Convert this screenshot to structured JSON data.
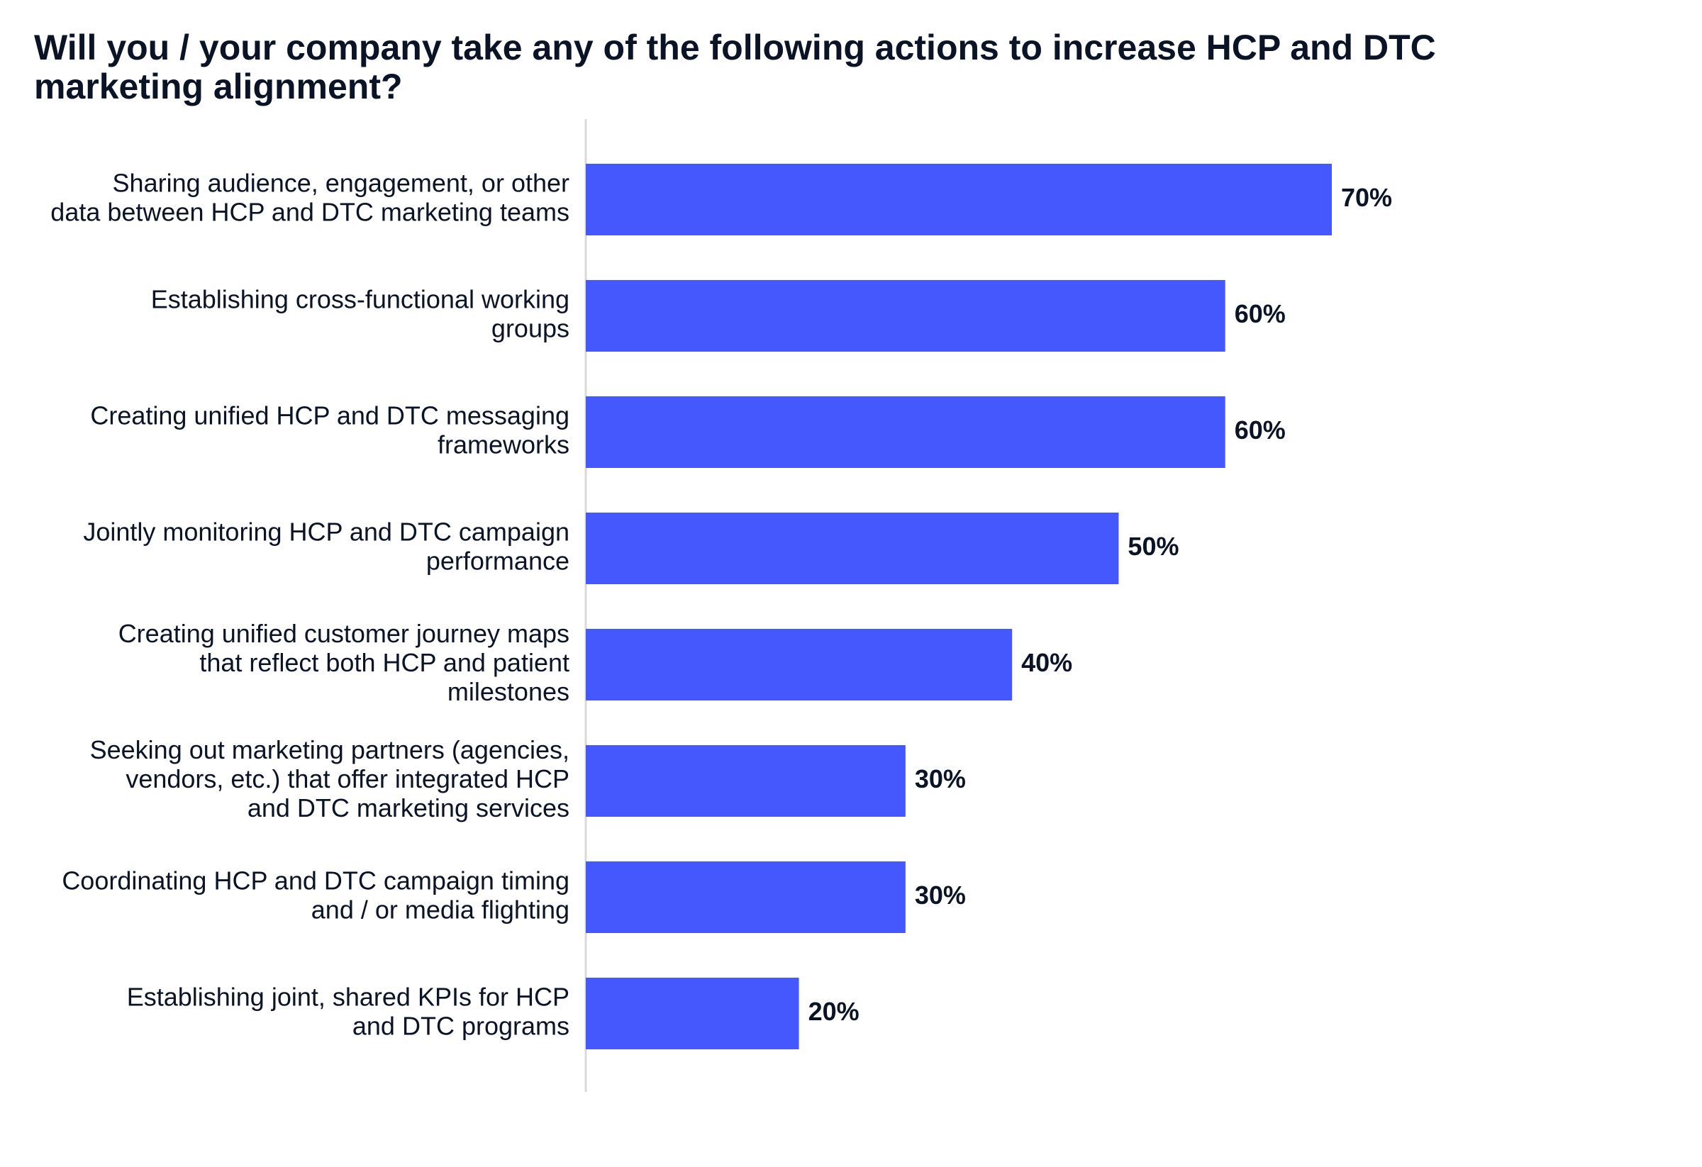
{
  "chart_data": {
    "type": "bar",
    "orientation": "horizontal",
    "title": "Will you / your company take any of the following actions to increase HCP and DTC marketing alignment?",
    "categories": [
      [
        "Sharing audience, engagement, or other",
        "data between HCP and DTC marketing teams"
      ],
      [
        "Establishing cross-functional working",
        "groups"
      ],
      [
        "Creating unified HCP and DTC messaging",
        "frameworks"
      ],
      [
        "Jointly monitoring HCP and DTC campaign",
        "performance"
      ],
      [
        "Creating unified customer journey maps",
        "that reflect both HCP and patient",
        "milestones"
      ],
      [
        "Seeking out marketing partners (agencies,",
        "vendors, etc.) that offer integrated HCP",
        "and DTC marketing services"
      ],
      [
        "Coordinating HCP and DTC campaign timing",
        "and / or media flighting"
      ],
      [
        "Establishing joint, shared KPIs for HCP",
        "and DTC programs"
      ]
    ],
    "values": [
      70,
      60,
      60,
      50,
      40,
      30,
      30,
      20
    ],
    "value_labels": [
      "70%",
      "60%",
      "60%",
      "50%",
      "40%",
      "30%",
      "30%",
      "20%"
    ],
    "xlim": [
      0,
      100
    ],
    "grid": false,
    "bar_color": "#4458fe",
    "axis_color": "#d9d9d9",
    "text_color": "#0b1426"
  }
}
